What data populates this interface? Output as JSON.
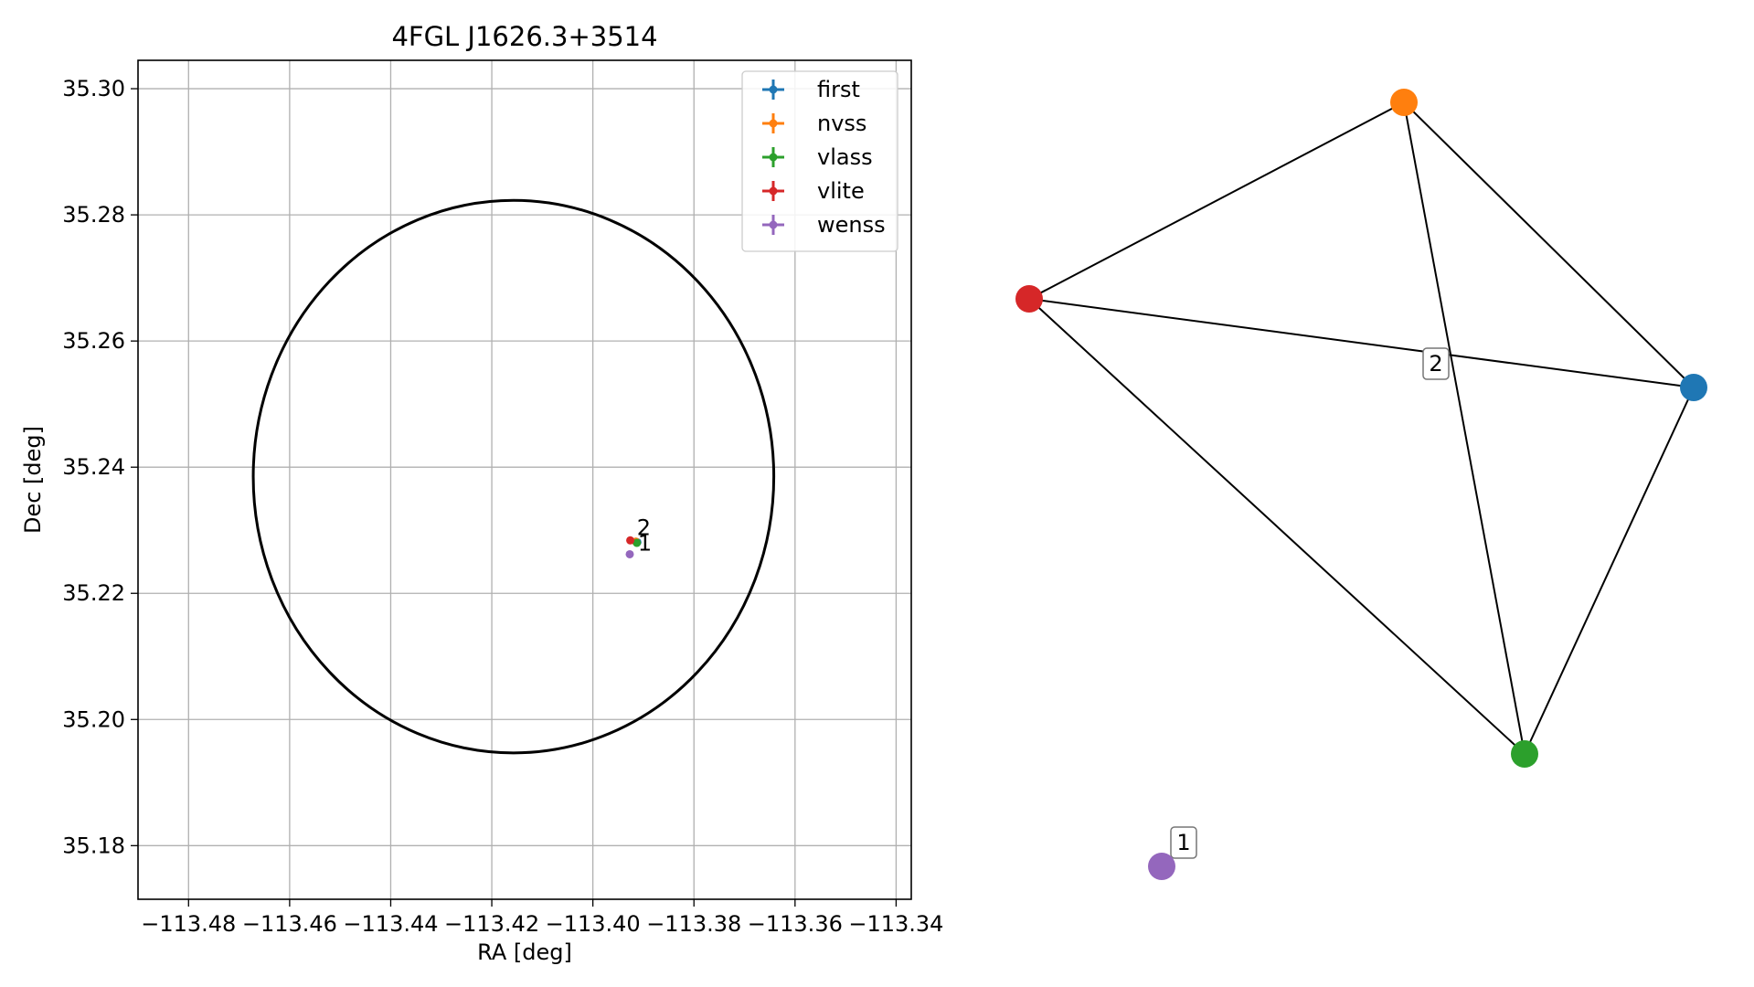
{
  "chart_data": [
    {
      "type": "scatter",
      "title": "4FGL J1626.3+3514",
      "xlabel": "RA [deg]",
      "ylabel": "Dec [deg]",
      "xlim": [
        -113.49,
        -113.337
      ],
      "ylim": [
        35.1715,
        35.3045
      ],
      "xticks": [
        -113.48,
        -113.46,
        -113.44,
        -113.42,
        -113.4,
        -113.38,
        -113.36,
        -113.34
      ],
      "xtick_labels": [
        "−113.48",
        "−113.46",
        "−113.44",
        "−113.42",
        "−113.40",
        "−113.38",
        "−113.36",
        "−113.34"
      ],
      "yticks": [
        35.18,
        35.2,
        35.22,
        35.24,
        35.26,
        35.28,
        35.3
      ],
      "ytick_labels": [
        "35.18",
        "35.20",
        "35.22",
        "35.24",
        "35.26",
        "35.28",
        "35.30"
      ],
      "grid": true,
      "legend_placement": "top-right",
      "ellipse": {
        "center": [
          -113.4157,
          35.2385
        ],
        "ra_semi_axis": 0.0515,
        "dec_semi_axis": 0.0438,
        "color": "#000000"
      },
      "series": [
        {
          "name": "first",
          "color": "#1f77b4",
          "points": [
            [
              -113.3912,
              35.2281
            ]
          ]
        },
        {
          "name": "nvss",
          "color": "#ff7f0e",
          "points": [
            [
              -113.3915,
              35.2282
            ]
          ]
        },
        {
          "name": "vlass",
          "color": "#2ca02c",
          "points": [
            [
              -113.3913,
              35.228
            ]
          ]
        },
        {
          "name": "vlite",
          "color": "#d62728",
          "points": [
            [
              -113.3926,
              35.2284
            ]
          ]
        },
        {
          "name": "wenss",
          "color": "#9467bd",
          "points": [
            [
              -113.3927,
              35.2262
            ]
          ]
        }
      ],
      "annotations": [
        {
          "text": "2",
          "x": -113.3913,
          "y": 35.2292
        },
        {
          "text": "1",
          "x": -113.3911,
          "y": 35.2268
        }
      ]
    },
    {
      "type": "network",
      "nodes": [
        {
          "id": "first",
          "color": "#1f77b4"
        },
        {
          "id": "nvss",
          "color": "#ff7f0e"
        },
        {
          "id": "vlass",
          "color": "#2ca02c"
        },
        {
          "id": "vlite",
          "color": "#d62728"
        },
        {
          "id": "wenss",
          "color": "#9467bd"
        }
      ],
      "edges": [
        [
          "vlite",
          "nvss"
        ],
        [
          "nvss",
          "first"
        ],
        [
          "nvss",
          "vlass"
        ],
        [
          "vlite",
          "first"
        ],
        [
          "vlite",
          "vlass"
        ],
        [
          "first",
          "vlass"
        ]
      ],
      "cluster_labels": [
        {
          "text": "2",
          "members": [
            "first",
            "nvss",
            "vlass",
            "vlite"
          ]
        },
        {
          "text": "1",
          "members": [
            "wenss"
          ]
        }
      ]
    }
  ]
}
